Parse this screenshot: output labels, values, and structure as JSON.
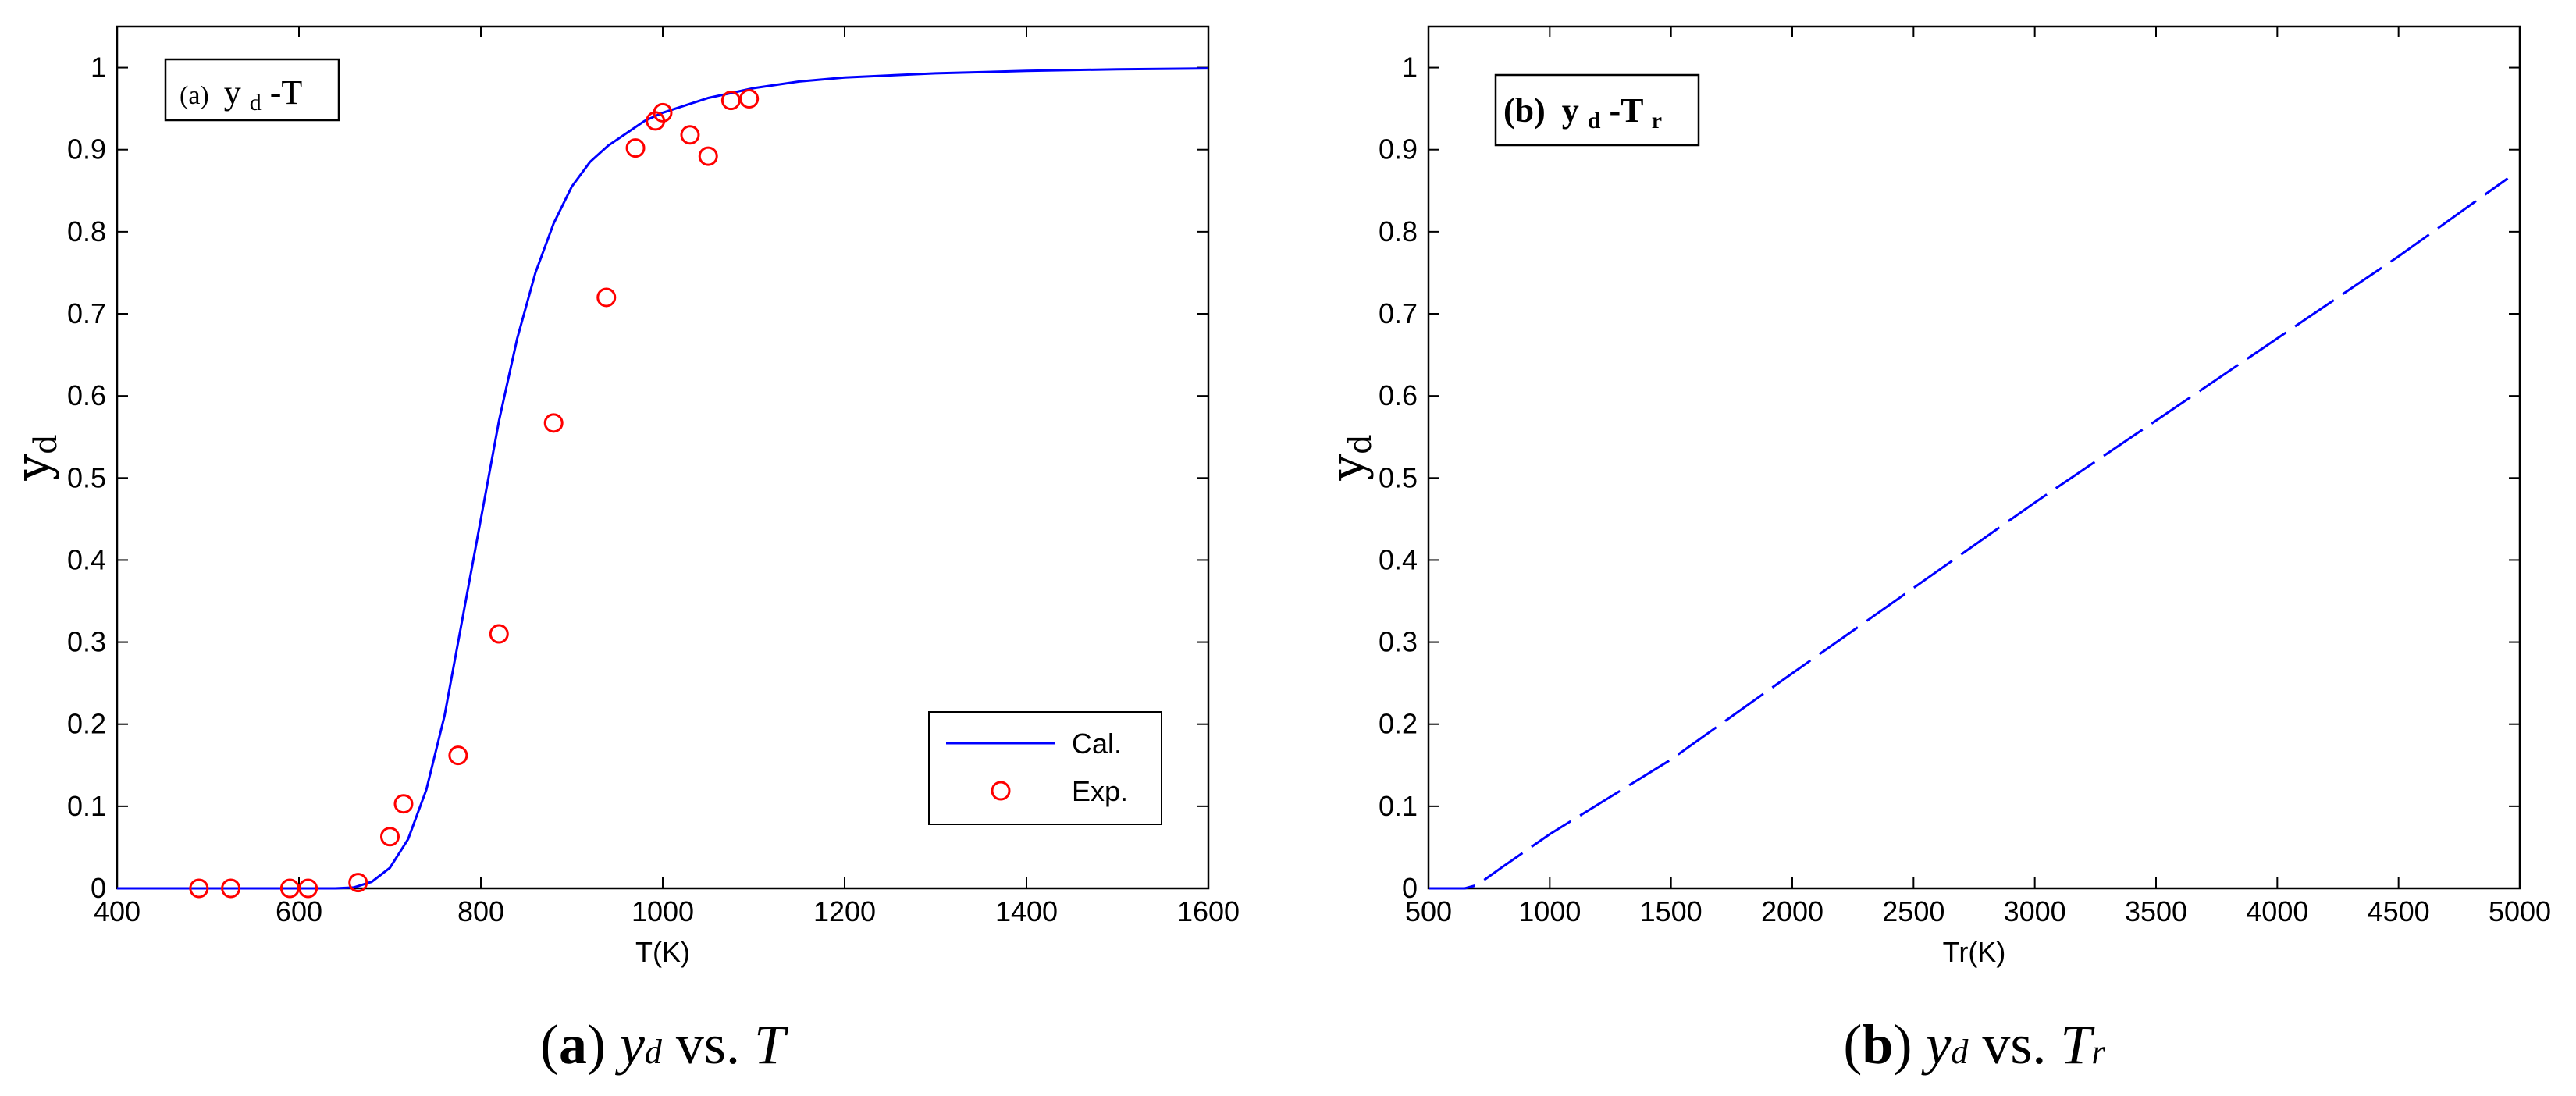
{
  "colors": {
    "curve": "#0000ff",
    "points": "#ff0000",
    "axes": "#000000"
  },
  "chart_data": [
    {
      "type": "line",
      "box_label": {
        "prefix": "(a)",
        "var": "y",
        "sub": "d",
        "rest": "-T"
      },
      "xlabel": "T(K)",
      "ylabel": {
        "main": "y",
        "sub": "d"
      },
      "xlim": [
        400,
        1600
      ],
      "ylim": [
        0,
        1.05
      ],
      "xticks": [
        400,
        600,
        800,
        1000,
        1200,
        1400,
        1600
      ],
      "xtick_labels": [
        "400",
        "600",
        "800",
        "1000",
        "1200",
        "1400",
        "1600"
      ],
      "yticks": [
        0,
        0.1,
        0.2,
        0.3,
        0.4,
        0.5,
        0.6,
        0.7,
        0.8,
        0.9,
        1
      ],
      "ytick_labels": [
        "0",
        "0.1",
        "0.2",
        "0.3",
        "0.4",
        "0.5",
        "0.6",
        "0.7",
        "0.8",
        "0.9",
        "1"
      ],
      "legend": {
        "position": "bottom-right",
        "entries": [
          "Cal.",
          "Exp."
        ]
      },
      "series": [
        {
          "name": "Cal.",
          "style": "solid-line",
          "x": [
            400,
            640,
            660,
            680,
            700,
            720,
            740,
            760,
            780,
            800,
            820,
            840,
            860,
            880,
            900,
            920,
            940,
            960,
            980,
            1000,
            1050,
            1100,
            1150,
            1200,
            1300,
            1400,
            1500,
            1600
          ],
          "y": [
            0,
            0,
            0.001,
            0.008,
            0.025,
            0.06,
            0.12,
            0.21,
            0.33,
            0.45,
            0.57,
            0.67,
            0.75,
            0.81,
            0.855,
            0.885,
            0.905,
            0.92,
            0.935,
            0.945,
            0.963,
            0.975,
            0.983,
            0.988,
            0.993,
            0.996,
            0.998,
            0.999
          ]
        },
        {
          "name": "Exp.",
          "style": "circle-markers",
          "x": [
            490,
            525,
            590,
            610,
            665,
            700,
            715,
            775,
            820,
            880,
            938,
            970,
            992,
            1000,
            1030,
            1050,
            1075,
            1095
          ],
          "y": [
            0,
            0,
            0,
            0,
            0.007,
            0.063,
            0.103,
            0.162,
            0.31,
            0.567,
            0.72,
            0.902,
            0.935,
            0.945,
            0.918,
            0.892,
            0.96,
            0.962
          ]
        }
      ]
    },
    {
      "type": "line",
      "box_label": {
        "prefix": "(b)",
        "var": "y",
        "sub": "d",
        "rest": "-T",
        "rest_sub": "r"
      },
      "xlabel": "Tr(K)",
      "ylabel": {
        "main": "y",
        "sub": "d"
      },
      "xlim": [
        500,
        5000
      ],
      "ylim": [
        0,
        1.05
      ],
      "xticks": [
        500,
        1000,
        1500,
        2000,
        2500,
        3000,
        3500,
        4000,
        4500,
        5000
      ],
      "xtick_labels": [
        "500",
        "1000",
        "1500",
        "2000",
        "2500",
        "3000",
        "3500",
        "4000",
        "4500",
        "5000"
      ],
      "yticks": [
        0,
        0.1,
        0.2,
        0.3,
        0.4,
        0.5,
        0.6,
        0.7,
        0.8,
        0.9,
        1
      ],
      "ytick_labels": [
        "0",
        "0.1",
        "0.2",
        "0.3",
        "0.4",
        "0.5",
        "0.6",
        "0.7",
        "0.8",
        "0.9",
        "1"
      ],
      "series": [
        {
          "style": "dashed-line",
          "x": [
            500,
            650,
            700,
            800,
            1000,
            1500,
            2000,
            2500,
            3000,
            3500,
            4000,
            4500,
            4950
          ],
          "y": [
            0,
            0,
            0.004,
            0.025,
            0.066,
            0.157,
            0.262,
            0.366,
            0.47,
            0.57,
            0.67,
            0.77,
            0.865
          ]
        }
      ]
    }
  ],
  "captions": [
    {
      "label": "a",
      "var": "y",
      "var_sub": "d",
      "vs": "vs.",
      "against": "T",
      "against_sub": ""
    },
    {
      "label": "b",
      "var": "y",
      "var_sub": "d",
      "vs": "vs.",
      "against": "T",
      "against_sub": "r"
    }
  ]
}
